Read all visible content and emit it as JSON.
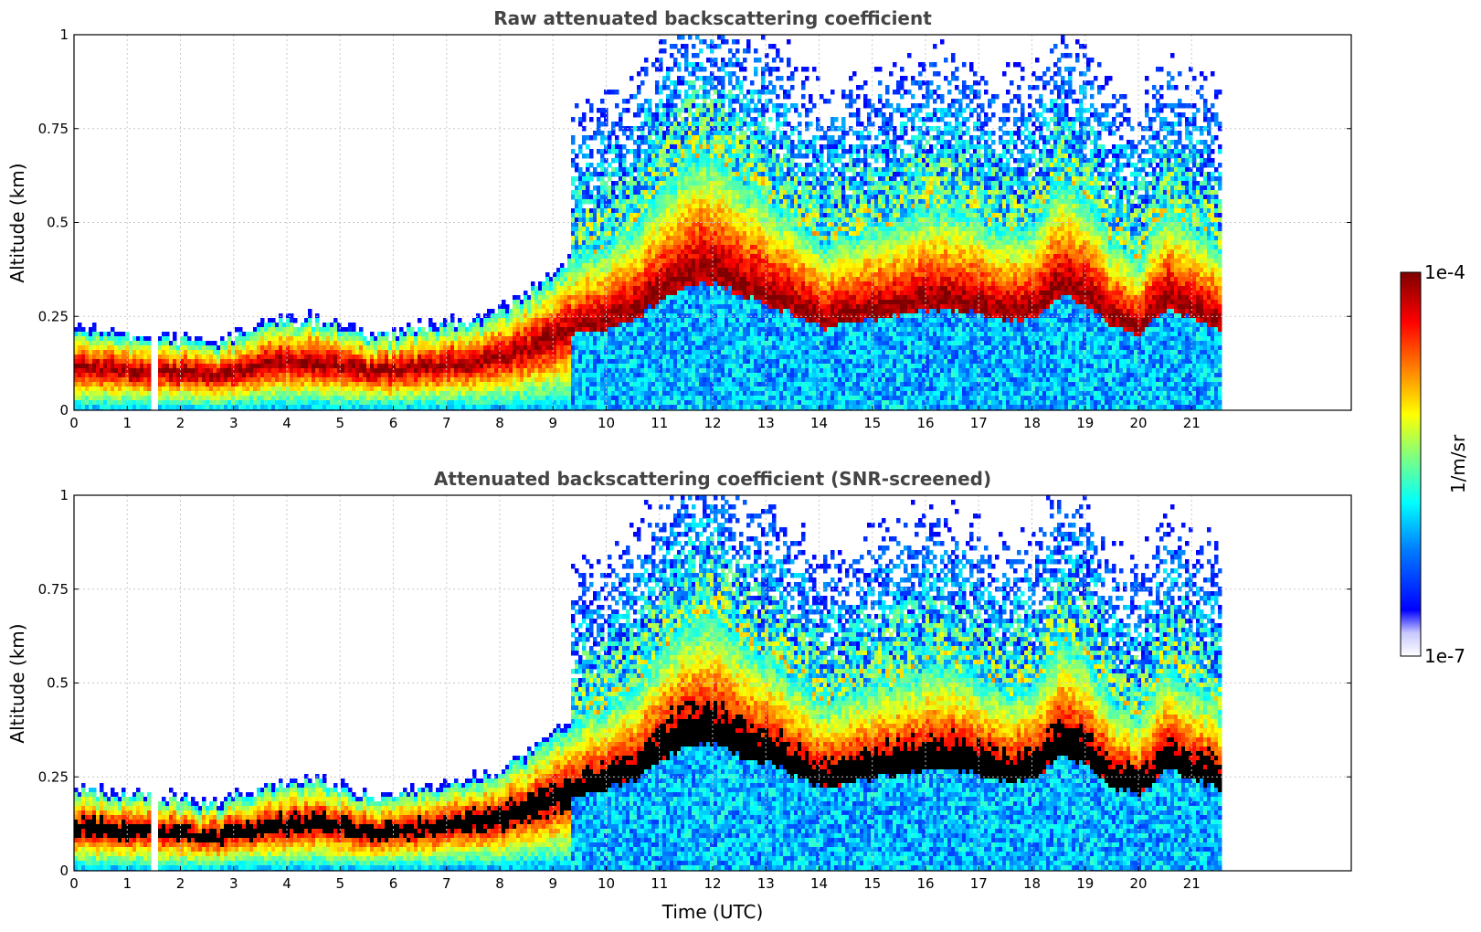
{
  "chart_data": [
    {
      "type": "heatmap",
      "title": "Raw attenuated backscattering coefficient",
      "xlabel": "",
      "ylabel": "Altitude (km)",
      "xlim": [
        0,
        24
      ],
      "ylim": [
        0,
        1
      ],
      "x_ticks": [
        "0",
        "1",
        "2",
        "3",
        "4",
        "5",
        "6",
        "7",
        "8",
        "9",
        "10",
        "11",
        "12",
        "13",
        "14",
        "15",
        "16",
        "17",
        "18",
        "19",
        "20",
        "21"
      ],
      "y_ticks": [
        "0",
        "0.25",
        "0.5",
        "0.75",
        "1"
      ],
      "grid": true,
      "data_extent_hours": [
        0,
        21.5
      ],
      "gap_hours": [
        1.42,
        1.55
      ],
      "layer_top_km": [
        [
          0,
          0.22
        ],
        [
          0.5,
          0.21
        ],
        [
          1,
          0.2
        ],
        [
          1.5,
          0.2
        ],
        [
          2,
          0.19
        ],
        [
          2.5,
          0.17
        ],
        [
          3,
          0.2
        ],
        [
          3.5,
          0.22
        ],
        [
          4,
          0.24
        ],
        [
          4.5,
          0.24
        ],
        [
          5,
          0.22
        ],
        [
          5.5,
          0.2
        ],
        [
          6,
          0.2
        ],
        [
          6.5,
          0.22
        ],
        [
          7,
          0.23
        ],
        [
          7.5,
          0.24
        ],
        [
          8,
          0.27
        ],
        [
          8.5,
          0.31
        ],
        [
          9,
          0.37
        ],
        [
          9.5,
          0.42
        ],
        [
          10,
          0.45
        ],
        [
          10.5,
          0.5
        ],
        [
          11,
          0.6
        ],
        [
          11.5,
          0.68
        ],
        [
          12,
          0.7
        ],
        [
          12.5,
          0.62
        ],
        [
          13,
          0.58
        ],
        [
          13.5,
          0.52
        ],
        [
          14,
          0.45
        ],
        [
          14.5,
          0.48
        ],
        [
          15,
          0.5
        ],
        [
          15.5,
          0.52
        ],
        [
          16,
          0.55
        ],
        [
          16.5,
          0.55
        ],
        [
          17,
          0.52
        ],
        [
          17.5,
          0.48
        ],
        [
          18,
          0.5
        ],
        [
          18.5,
          0.62
        ],
        [
          19,
          0.58
        ],
        [
          19.5,
          0.45
        ],
        [
          20,
          0.42
        ],
        [
          20.5,
          0.55
        ],
        [
          21,
          0.5
        ],
        [
          21.5,
          0.45
        ]
      ],
      "colorbar": {
        "min_label": "1e-7",
        "max_label": "1e-4",
        "unit": "1/m/sr",
        "scale": "log"
      }
    },
    {
      "type": "heatmap",
      "title": "Attenuated backscattering coefficient (SNR-screened)",
      "xlabel": "Time (UTC)",
      "ylabel": "Altitude (km)",
      "xlim": [
        0,
        24
      ],
      "ylim": [
        0,
        1
      ],
      "x_ticks": [
        "0",
        "1",
        "2",
        "3",
        "4",
        "5",
        "6",
        "7",
        "8",
        "9",
        "10",
        "11",
        "12",
        "13",
        "14",
        "15",
        "16",
        "17",
        "18",
        "19",
        "20",
        "21"
      ],
      "y_ticks": [
        "0",
        "0.25",
        "0.5",
        "0.75",
        "1"
      ],
      "grid": true,
      "data_extent_hours": [
        0,
        21.5
      ],
      "gap_hours": [
        1.42,
        1.55
      ],
      "saturated_color": "#000000"
    }
  ],
  "colors": {
    "jet": [
      "#00007f",
      "#0000ff",
      "#007fff",
      "#00ffff",
      "#7fff7f",
      "#ffff00",
      "#ff7f00",
      "#ff0000",
      "#7f0000"
    ],
    "background": "#ffffff",
    "grid": "#c8c8c8",
    "title": "#444444"
  }
}
